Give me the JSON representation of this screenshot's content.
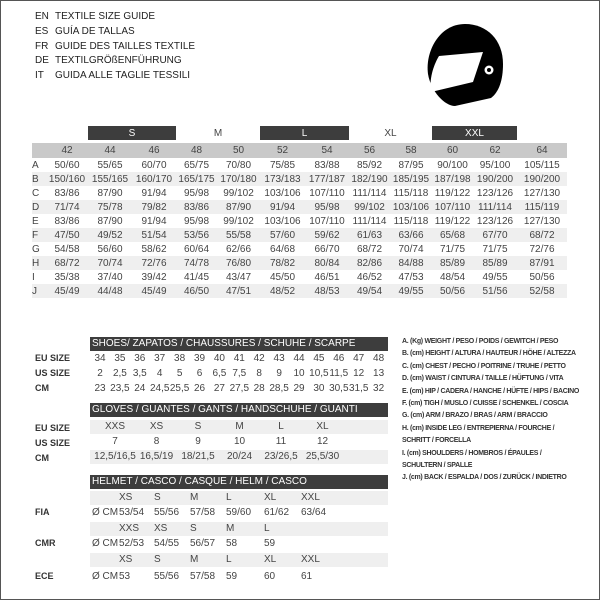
{
  "titles": [
    {
      "code": "EN",
      "text": "TEXTILE SIZE GUIDE"
    },
    {
      "code": "ES",
      "text": "GUÍA DE TALLAS"
    },
    {
      "code": "FR",
      "text": "GUIDE DES TAILLES TEXTILE"
    },
    {
      "code": "DE",
      "text": "TEXTILGRÖßENFÜHRUNG"
    },
    {
      "code": "IT",
      "text": "GUIDA ALLE TAGLIE TESSILI"
    }
  ],
  "icon": "helmet-icon",
  "colors": {
    "dark_band": "#3d3d3d",
    "header_gray": "#c9c9c9",
    "stripe": "#efefef"
  },
  "textile": {
    "size_bands": [
      "S",
      "M",
      "L",
      "XL",
      "XXL"
    ],
    "sizes": [
      "42",
      "44",
      "46",
      "48",
      "50",
      "52",
      "54",
      "56",
      "58",
      "60",
      "62",
      "64"
    ],
    "rows": [
      {
        "label": "A",
        "values": [
          "50/60",
          "55/65",
          "60/70",
          "65/75",
          "70/80",
          "75/85",
          "83/88",
          "85/92",
          "87/95",
          "90/100",
          "95/100",
          "105/115"
        ]
      },
      {
        "label": "B",
        "values": [
          "150/160",
          "155/165",
          "160/170",
          "165/175",
          "170/180",
          "173/183",
          "177/187",
          "182/190",
          "185/195",
          "187/198",
          "190/200",
          "190/200"
        ]
      },
      {
        "label": "C",
        "values": [
          "83/86",
          "87/90",
          "91/94",
          "95/98",
          "99/102",
          "103/106",
          "107/110",
          "111/114",
          "115/118",
          "119/122",
          "123/126",
          "127/130"
        ]
      },
      {
        "label": "D",
        "values": [
          "71/74",
          "75/78",
          "79/82",
          "83/86",
          "87/90",
          "91/94",
          "95/98",
          "99/102",
          "103/106",
          "107/110",
          "111/114",
          "115/119"
        ]
      },
      {
        "label": "E",
        "values": [
          "83/86",
          "87/90",
          "91/94",
          "95/98",
          "99/102",
          "103/106",
          "107/110",
          "111/114",
          "115/118",
          "119/122",
          "123/126",
          "127/130"
        ]
      },
      {
        "label": "F",
        "values": [
          "47/50",
          "49/52",
          "51/54",
          "53/56",
          "55/58",
          "57/60",
          "59/62",
          "61/63",
          "63/66",
          "65/68",
          "67/70",
          "68/72"
        ]
      },
      {
        "label": "G",
        "values": [
          "54/58",
          "56/60",
          "58/62",
          "60/64",
          "62/66",
          "64/68",
          "66/70",
          "68/72",
          "70/74",
          "71/75",
          "71/75",
          "72/76"
        ]
      },
      {
        "label": "H",
        "values": [
          "68/72",
          "70/74",
          "72/76",
          "74/78",
          "76/80",
          "78/82",
          "80/84",
          "82/86",
          "84/88",
          "85/89",
          "85/89",
          "87/91"
        ]
      },
      {
        "label": "I",
        "values": [
          "35/38",
          "37/40",
          "39/42",
          "41/45",
          "43/47",
          "45/50",
          "46/51",
          "46/52",
          "47/53",
          "48/54",
          "49/55",
          "50/56"
        ]
      },
      {
        "label": "J",
        "values": [
          "45/49",
          "44/48",
          "45/49",
          "46/50",
          "47/51",
          "48/52",
          "48/53",
          "49/54",
          "49/55",
          "50/56",
          "51/56",
          "52/58"
        ]
      }
    ]
  },
  "shoes": {
    "title": "SHOES/ ZAPATOS / CHAUSSURES / SCHUHE / SCARPE",
    "rows": [
      {
        "label": "EU SIZE",
        "values": [
          "34",
          "35",
          "36",
          "37",
          "38",
          "39",
          "40",
          "41",
          "42",
          "43",
          "44",
          "45",
          "46",
          "47",
          "48"
        ]
      },
      {
        "label": "US SIZE",
        "values": [
          "2",
          "2,5",
          "3,5",
          "4",
          "5",
          "6",
          "6,5",
          "7,5",
          "8",
          "9",
          "10",
          "10,5",
          "11,5",
          "12",
          "13"
        ]
      },
      {
        "label": "CM",
        "values": [
          "23",
          "23,5",
          "24",
          "24,5",
          "25,5",
          "26",
          "27",
          "27,5",
          "28",
          "28,5",
          "29",
          "30",
          "30,5",
          "31,5",
          "32"
        ]
      }
    ]
  },
  "gloves": {
    "title": "GLOVES / GUANTES / GANTS / HANDSCHUHE / GUANTI",
    "rows": [
      {
        "label": "EU SIZE",
        "values": [
          "XXS",
          "XS",
          "S",
          "M",
          "L",
          "XL"
        ]
      },
      {
        "label": "US SIZE",
        "values": [
          "7",
          "8",
          "9",
          "10",
          "11",
          "12"
        ]
      },
      {
        "label": "CM",
        "values": [
          "12,5/16,5",
          "16,5/19",
          "18/21,5",
          "20/24",
          "23/26,5",
          "25,5/30"
        ]
      }
    ]
  },
  "helmet": {
    "title": "HELMET / CASCO / CASQUE / HELM / CASCO",
    "unit": "Ø CM",
    "standards": [
      {
        "label": "FIA",
        "sizes": [
          "XS",
          "S",
          "M",
          "L",
          "XL",
          "XXL"
        ],
        "values": [
          "53/54",
          "55/56",
          "57/58",
          "59/60",
          "61/62",
          "63/64"
        ]
      },
      {
        "label": "CMR",
        "sizes": [
          "XXS",
          "XS",
          "S",
          "M",
          "L"
        ],
        "values": [
          "52/53",
          "54/55",
          "56/57",
          "58",
          "59"
        ]
      },
      {
        "label": "ECE",
        "sizes": [
          "XS",
          "S",
          "M",
          "L",
          "XL",
          "XXL"
        ],
        "values": [
          "53",
          "55/56",
          "57/58",
          "59",
          "60",
          "61"
        ]
      }
    ]
  },
  "legend": [
    "A. (Kg) WEIGHT / PESO / POIDS / GEWITCH / PESO",
    "B. (cm) HEIGHT / ALTURA / HAUTEUR / HÖHE / ALTEZZA",
    "C. (cm) CHEST / PECHO / POITRINE / TRUHE / PETTO",
    "D. (cm) WAIST / CINTURA / TAILLE / HÜFTUNG / VITA",
    "E. (cm) HIP / CADERA / HANCHE / HÜFTE / HIPS / BACINO",
    "F. (cm) TIGH / MUSLO / CUISSE / SCHENKEL / COSCIA",
    "G. (cm) ARM / BRAZO / BRAS / ARM / BRACCIO",
    "H. (cm) INSIDE LEG / ENTREPIERNA / FOURCHE /",
    "SCHRITT / FORCELLA",
    "I. (cm) SHOULDERS / HOMBROS / ÉPAULES /",
    "SCHULTERN / SPALLE",
    "J. (cm) BACK / ESPALDA / DOS / ZURÜCK / INDIETRO"
  ]
}
